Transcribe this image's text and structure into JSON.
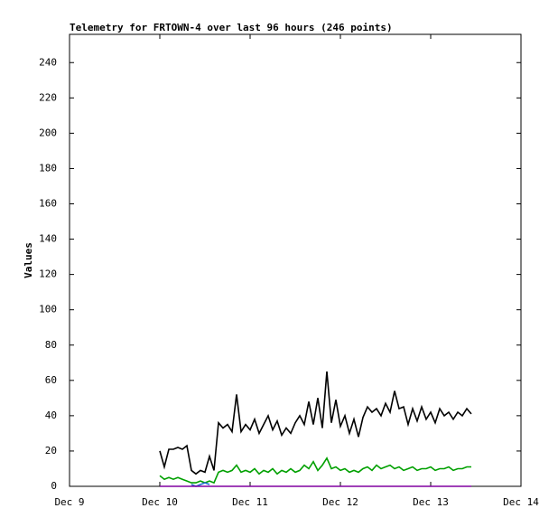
{
  "chart_data": {
    "type": "line",
    "title": "Telemetry for FRTOWN-4 over last 96 hours (246 points)",
    "y_label": "Values",
    "x": [
      10.0,
      10.05,
      10.1,
      10.15,
      10.2,
      10.25,
      10.3,
      10.35,
      10.4,
      10.45,
      10.5,
      10.55,
      10.6,
      10.65,
      10.7,
      10.75,
      10.8,
      10.85,
      10.9,
      10.95,
      11.0,
      11.05,
      11.1,
      11.15,
      11.2,
      11.25,
      11.3,
      11.35,
      11.4,
      11.45,
      11.5,
      11.55,
      11.6,
      11.65,
      11.7,
      11.75,
      11.8,
      11.85,
      11.9,
      11.95,
      12.0,
      12.05,
      12.1,
      12.15,
      12.2,
      12.25,
      12.3,
      12.35,
      12.4,
      12.45,
      12.5,
      12.55,
      12.6,
      12.65,
      12.7,
      12.75,
      12.8,
      12.85,
      12.9,
      12.95,
      13.0,
      13.05,
      13.1,
      13.15,
      13.2,
      13.25,
      13.3,
      13.35,
      13.4,
      13.45
    ],
    "series": [
      {
        "color": "#000000",
        "values": [
          20,
          11,
          21,
          21,
          22,
          21,
          23,
          9,
          7,
          9,
          8,
          17,
          9,
          36,
          33,
          35,
          31,
          52,
          31,
          35,
          32,
          38,
          30,
          35,
          40,
          32,
          37,
          29,
          33,
          30,
          36,
          40,
          35,
          48,
          35,
          50,
          33,
          65,
          36,
          49,
          34,
          40,
          30,
          38,
          28,
          39,
          45,
          42,
          44,
          40,
          47,
          42,
          54,
          44,
          45,
          35,
          44,
          37,
          45,
          38,
          42,
          36,
          44,
          40,
          42,
          38,
          42,
          40,
          44,
          41
        ]
      },
      {
        "color": "#00a000",
        "values": [
          6,
          4,
          5,
          4,
          5,
          4,
          3,
          2,
          2,
          3,
          2,
          3,
          2,
          8,
          9,
          8,
          9,
          12,
          8,
          9,
          8,
          10,
          7,
          9,
          8,
          10,
          7,
          9,
          8,
          10,
          8,
          9,
          12,
          10,
          14,
          9,
          12,
          16,
          10,
          11,
          9,
          10,
          8,
          9,
          8,
          10,
          11,
          9,
          12,
          10,
          11,
          12,
          10,
          11,
          9,
          10,
          11,
          9,
          10,
          10,
          11,
          9,
          10,
          10,
          11,
          9,
          10,
          10,
          11,
          11
        ]
      },
      {
        "color": "#1f6fd0",
        "values": [
          null,
          null,
          null,
          null,
          null,
          null,
          null,
          1,
          0,
          1,
          2,
          1,
          null,
          null,
          null,
          null,
          null,
          null,
          null,
          null,
          null,
          null,
          null,
          null,
          null,
          null,
          null,
          null,
          null,
          null,
          null,
          null,
          null,
          null,
          null,
          null,
          null,
          null,
          null,
          null,
          null,
          null,
          null,
          null,
          null,
          null,
          null,
          null,
          null,
          null,
          null,
          null,
          null,
          null,
          null,
          null,
          null,
          null,
          null,
          null,
          null,
          null,
          null,
          null,
          null,
          null,
          null,
          null,
          null,
          null
        ]
      },
      {
        "color": "#8000a0",
        "values": [
          0,
          0,
          0,
          0,
          0,
          0,
          0,
          0,
          0,
          0,
          0,
          0,
          0,
          0,
          0,
          0,
          0,
          0,
          0,
          0,
          0,
          0,
          0,
          0,
          0,
          0,
          0,
          0,
          0,
          0,
          0,
          0,
          0,
          0,
          0,
          0,
          0,
          0,
          0,
          0,
          0,
          0,
          0,
          0,
          0,
          0,
          0,
          0,
          0,
          0,
          0,
          0,
          0,
          0,
          0,
          0,
          0,
          0,
          0,
          0,
          0,
          0,
          0,
          0,
          0,
          0,
          0,
          0,
          0,
          0
        ]
      }
    ],
    "xlim": [
      9,
      14
    ],
    "xticks": [
      {
        "value": 9,
        "label": "Dec 9"
      },
      {
        "value": 10,
        "label": "Dec 10"
      },
      {
        "value": 11,
        "label": "Dec 11"
      },
      {
        "value": 12,
        "label": "Dec 12"
      },
      {
        "value": 13,
        "label": "Dec 13"
      },
      {
        "value": 14,
        "label": "Dec 14"
      }
    ],
    "ylim": [
      0,
      256
    ],
    "yticks": [
      0,
      20,
      40,
      60,
      80,
      100,
      120,
      140,
      160,
      180,
      200,
      220,
      240
    ]
  }
}
